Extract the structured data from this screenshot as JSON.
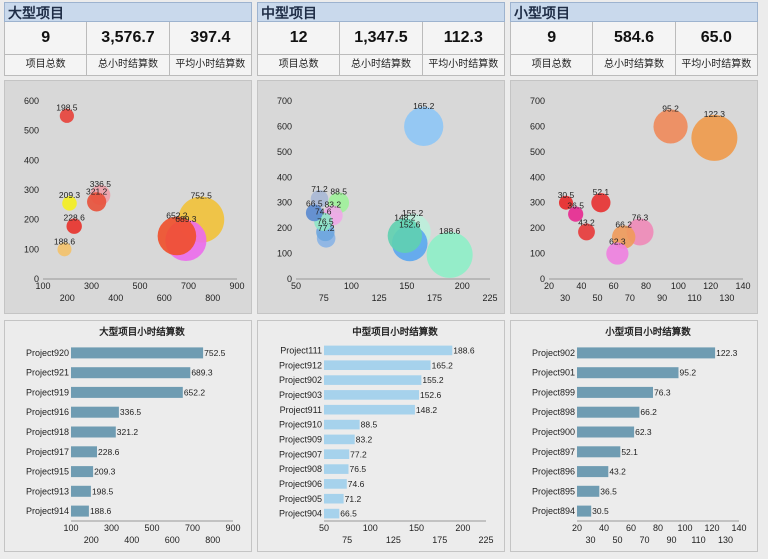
{
  "sections": [
    {
      "title": "大型项目",
      "kpis": [
        {
          "value": "9",
          "label": "项目总数"
        },
        {
          "value": "3,576.7",
          "label": "总小时结算数"
        },
        {
          "value": "397.4",
          "label": "平均小时结算数"
        }
      ]
    },
    {
      "title": "中型项目",
      "kpis": [
        {
          "value": "12",
          "label": "项目总数"
        },
        {
          "value": "1,347.5",
          "label": "总小时结算数"
        },
        {
          "value": "112.3",
          "label": "平均小时结算数"
        }
      ]
    },
    {
      "title": "小型项目",
      "kpis": [
        {
          "value": "9",
          "label": "项目总数"
        },
        {
          "value": "584.6",
          "label": "总小时结算数"
        },
        {
          "value": "65.0",
          "label": "平均小时结算数"
        }
      ]
    }
  ],
  "chart_data": [
    {
      "type": "scatter",
      "title": "",
      "xlim": [
        100,
        900
      ],
      "ylim": [
        0,
        600
      ],
      "xticks_top": [
        100,
        300,
        500,
        700,
        900
      ],
      "xticks_bottom": [
        200,
        400,
        600,
        800
      ],
      "yticks": [
        0,
        100,
        200,
        300,
        400,
        500,
        600
      ],
      "points": [
        {
          "x": 198.5,
          "y": 550,
          "value": 198.5,
          "color": "#e8413a"
        },
        {
          "x": 209.3,
          "y": 255,
          "value": 209.3,
          "color": "#f5f01e"
        },
        {
          "x": 228.6,
          "y": 178,
          "value": 228.6,
          "color": "#e8312a"
        },
        {
          "x": 188.6,
          "y": 100,
          "value": 188.6,
          "color": "#f4c26a"
        },
        {
          "x": 321.2,
          "y": 260,
          "value": 321.2,
          "color": "#e8513a"
        },
        {
          "x": 336.5,
          "y": 283,
          "value": 336.5,
          "color": "#f0a0a8"
        },
        {
          "x": 752.5,
          "y": 200,
          "value": 752.5,
          "color": "#f2c238"
        },
        {
          "x": 689.3,
          "y": 130,
          "value": 689.3,
          "color": "#ec6cec"
        },
        {
          "x": 652.2,
          "y": 145,
          "value": 652.2,
          "color": "#ef4f2a"
        }
      ]
    },
    {
      "type": "scatter",
      "title": "",
      "xlim": [
        50,
        225
      ],
      "ylim": [
        0,
        700
      ],
      "xticks_top": [
        50,
        100,
        150,
        200
      ],
      "xticks_bottom": [
        75,
        125,
        175,
        225
      ],
      "yticks": [
        0,
        100,
        200,
        300,
        400,
        500,
        600,
        700
      ],
      "points": [
        {
          "x": 165.2,
          "y": 600,
          "value": 165.2,
          "color": "#8ec6f6"
        },
        {
          "x": 71.2,
          "y": 315,
          "value": 71.2,
          "color": "#a8b8d6"
        },
        {
          "x": 88.5,
          "y": 300,
          "value": 88.5,
          "color": "#9ef29a"
        },
        {
          "x": 66.5,
          "y": 260,
          "value": 66.5,
          "color": "#5a8ad0"
        },
        {
          "x": 83.2,
          "y": 250,
          "value": 83.2,
          "color": "#f0a8e8"
        },
        {
          "x": 74.6,
          "y": 225,
          "value": 74.6,
          "color": "#8ee6c6"
        },
        {
          "x": 76.5,
          "y": 185,
          "value": 76.5,
          "color": "#6ea6de"
        },
        {
          "x": 77.2,
          "y": 160,
          "value": 77.2,
          "color": "#8ab4e6"
        },
        {
          "x": 155.2,
          "y": 185,
          "value": 155.2,
          "color": "#bdf0dc"
        },
        {
          "x": 148.2,
          "y": 170,
          "value": 148.2,
          "color": "#5fd0b0"
        },
        {
          "x": 152.6,
          "y": 140,
          "value": 152.6,
          "color": "#5aa6f0"
        },
        {
          "x": 188.6,
          "y": 95,
          "value": 188.6,
          "color": "#8ef0c8"
        }
      ]
    },
    {
      "type": "scatter",
      "title": "",
      "xlim": [
        20,
        140
      ],
      "ylim": [
        0,
        700
      ],
      "xticks_top": [
        20,
        40,
        60,
        80,
        100,
        120,
        140
      ],
      "xticks_bottom": [
        30,
        50,
        70,
        90,
        110,
        130
      ],
      "yticks": [
        0,
        100,
        200,
        300,
        400,
        500,
        600,
        700
      ],
      "points": [
        {
          "x": 95.2,
          "y": 600,
          "value": 95.2,
          "color": "#f08a5a"
        },
        {
          "x": 122.3,
          "y": 555,
          "value": 122.3,
          "color": "#f09a4a"
        },
        {
          "x": 30.5,
          "y": 300,
          "value": 30.5,
          "color": "#e82828"
        },
        {
          "x": 36.5,
          "y": 255,
          "value": 36.5,
          "color": "#e82890"
        },
        {
          "x": 52.1,
          "y": 300,
          "value": 52.1,
          "color": "#e83030"
        },
        {
          "x": 43.2,
          "y": 185,
          "value": 43.2,
          "color": "#e83838"
        },
        {
          "x": 76.3,
          "y": 185,
          "value": 76.3,
          "color": "#f08ab8"
        },
        {
          "x": 66.2,
          "y": 165,
          "value": 66.2,
          "color": "#f09a5a"
        },
        {
          "x": 62.3,
          "y": 100,
          "value": 62.3,
          "color": "#f080e0"
        }
      ]
    },
    {
      "type": "bar",
      "orientation": "horizontal",
      "title": "大型项目小时结算数",
      "categories": [
        "Project920",
        "Project921",
        "Project919",
        "Project916",
        "Project918",
        "Project917",
        "Project915",
        "Project913",
        "Project914"
      ],
      "values": [
        752.5,
        689.3,
        652.2,
        336.5,
        321.2,
        228.6,
        209.3,
        198.5,
        188.6
      ],
      "xlim": [
        100,
        900
      ],
      "xticks_top": [
        100,
        300,
        500,
        700,
        900
      ],
      "xticks_bottom": [
        200,
        400,
        600,
        800
      ],
      "color": "#6f9cb2"
    },
    {
      "type": "bar",
      "orientation": "horizontal",
      "title": "中型项目小时结算数",
      "categories": [
        "Project111",
        "Project912",
        "Project902",
        "Project903",
        "Project911",
        "Project910",
        "Project909",
        "Project907",
        "Project908",
        "Project906",
        "Project905",
        "Project904"
      ],
      "values": [
        188.6,
        165.2,
        155.2,
        152.6,
        148.2,
        88.5,
        83.2,
        77.2,
        76.5,
        74.6,
        71.2,
        66.5
      ],
      "xlim": [
        50,
        225
      ],
      "xticks_top": [
        50,
        100,
        150,
        200
      ],
      "xticks_bottom": [
        75,
        125,
        175,
        225
      ],
      "color": "#a6d2ec"
    },
    {
      "type": "bar",
      "orientation": "horizontal",
      "title": "小型项目小时结算数",
      "categories": [
        "Project902",
        "Project901",
        "Project899",
        "Project898",
        "Project900",
        "Project897",
        "Project896",
        "Project895",
        "Project894"
      ],
      "values": [
        122.3,
        95.2,
        76.3,
        66.2,
        62.3,
        52.1,
        43.2,
        36.5,
        30.5
      ],
      "xlim": [
        20,
        140
      ],
      "xticks_top": [
        20,
        40,
        60,
        80,
        100,
        120,
        140
      ],
      "xticks_bottom": [
        30,
        50,
        70,
        90,
        110,
        130
      ],
      "color": "#6f9cb2"
    }
  ]
}
